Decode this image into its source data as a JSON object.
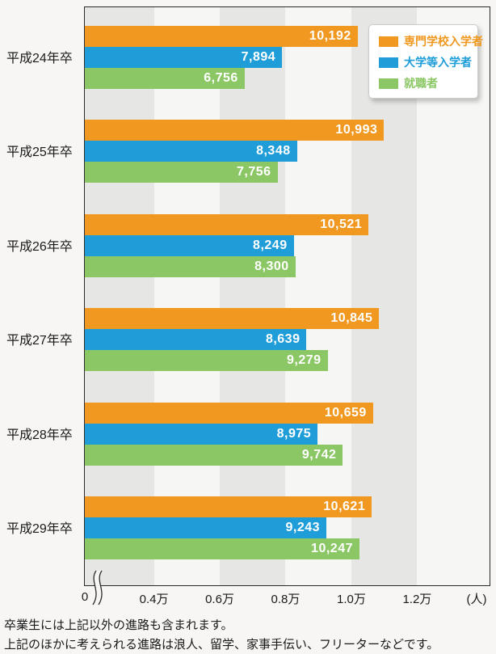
{
  "chart_data": {
    "type": "bar",
    "orientation": "horizontal",
    "title": "",
    "categories": [
      "平成24年卒",
      "平成25年卒",
      "平成26年卒",
      "平成27年卒",
      "平成28年卒",
      "平成29年卒"
    ],
    "series": [
      {
        "name": "専門学校入学者",
        "color": "#F0981F",
        "values": [
          10192,
          10993,
          10521,
          10845,
          10659,
          10621
        ]
      },
      {
        "name": "大学等入学者",
        "color": "#1F9DD9",
        "values": [
          7894,
          8348,
          8249,
          8639,
          8975,
          9243
        ]
      },
      {
        "name": "就職者",
        "color": "#8BC764",
        "values": [
          6756,
          7756,
          8300,
          9279,
          9742,
          10247
        ]
      }
    ],
    "x_axis": {
      "origin_label": "0",
      "tick_values": [
        4000,
        6000,
        8000,
        10000,
        12000
      ],
      "tick_labels": [
        "0.4万",
        "0.6万",
        "0.8万",
        "1.0万",
        "1.2万"
      ],
      "unit_label": "(人)",
      "axis_break": true,
      "effective_range": [
        1900,
        14200
      ],
      "grid": "alternating-vertical-bands"
    },
    "legend_position": "top-right",
    "value_labels": "inside-end, white, comma-separated"
  },
  "colors": {
    "stripe_dark": "#e6e7e5",
    "stripe_light": "#f6f6f4",
    "axis_border": "#2b2b2b",
    "text": "#1a1a1a",
    "bar_value_text": "#ffffff",
    "page_background": "#f7f6f4",
    "legend_background": "#ffffff",
    "legend_border": "#cccccc"
  },
  "notes": [
    "卒業生には上記以外の進路も含まれます。",
    "上記のほかに考えられる進路は浪人、留学、家事手伝い、フリーターなどです。"
  ]
}
